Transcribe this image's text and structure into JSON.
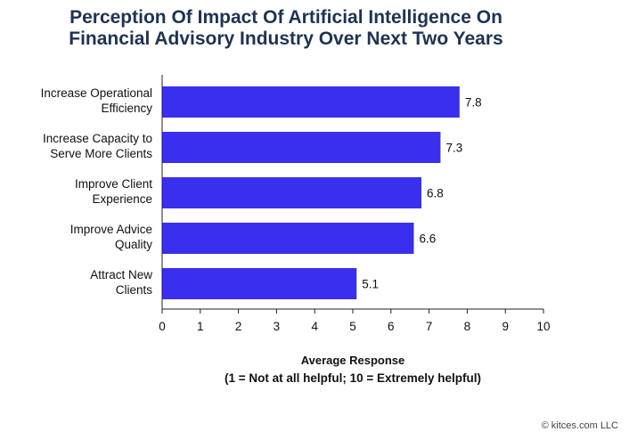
{
  "chart_data": {
    "type": "bar",
    "orientation": "horizontal",
    "title_lines": [
      "Perception Of Impact Of Artificial Intelligence On",
      "Financial Advisory Industry Over Next Two Years"
    ],
    "categories": [
      [
        "Increase Operational",
        "Efficiency"
      ],
      [
        "Increase Capacity to",
        "Serve More Clients"
      ],
      [
        "Improve Client",
        "Experience"
      ],
      [
        "Improve Advice",
        "Quality"
      ],
      [
        "Attract New",
        "Clients"
      ]
    ],
    "values": [
      7.8,
      7.3,
      6.8,
      6.6,
      5.1
    ],
    "value_labels": [
      "7.8",
      "7.3",
      "6.8",
      "6.6",
      "5.1"
    ],
    "xlim": [
      0,
      10
    ],
    "xticks": [
      0,
      1,
      2,
      3,
      4,
      5,
      6,
      7,
      8,
      9,
      10
    ],
    "xlabel_lines": [
      "Average Response",
      "(1 = Not at all helpful; 10 = Extremely helpful)"
    ],
    "grid": false,
    "bar_color": "#3a2fee"
  },
  "credit": "© kitces.com LLC"
}
